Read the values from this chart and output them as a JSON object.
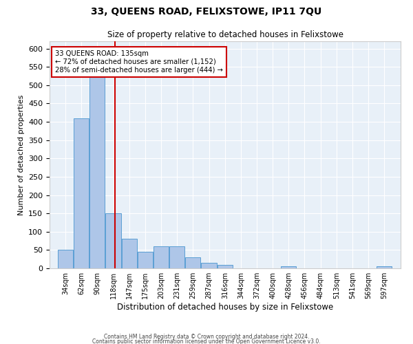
{
  "title": "33, QUEENS ROAD, FELIXSTOWE, IP11 7QU",
  "subtitle": "Size of property relative to detached houses in Felixstowe",
  "xlabel": "Distribution of detached houses by size in Felixstowe",
  "ylabel": "Number of detached properties",
  "bar_left_edges": [
    34,
    62,
    90,
    118,
    147,
    175,
    203,
    231,
    259,
    287,
    316,
    344,
    372,
    400,
    428,
    456,
    484,
    513,
    541,
    569,
    597
  ],
  "bar_widths": [
    28,
    28,
    28,
    29,
    28,
    28,
    28,
    28,
    28,
    29,
    28,
    28,
    28,
    28,
    28,
    28,
    29,
    28,
    28,
    28,
    28
  ],
  "bar_heights": [
    50,
    410,
    530,
    150,
    80,
    45,
    60,
    60,
    30,
    15,
    10,
    0,
    0,
    0,
    5,
    0,
    0,
    0,
    0,
    0,
    5
  ],
  "bar_color": "#aec6e8",
  "bar_edge_color": "#5a9fd4",
  "property_size": 135,
  "vline_color": "#cc0000",
  "annotation_text": "33 QUEENS ROAD: 135sqm\n← 72% of detached houses are smaller (1,152)\n28% of semi-detached houses are larger (444) →",
  "annotation_box_color": "#ffffff",
  "annotation_box_edge": "#cc0000",
  "ylim": [
    0,
    620
  ],
  "yticks": [
    0,
    50,
    100,
    150,
    200,
    250,
    300,
    350,
    400,
    450,
    500,
    550,
    600
  ],
  "xlim_left": 20,
  "xlim_right": 640,
  "background_color": "#e8f0f8",
  "grid_color": "#ffffff",
  "footer_line1": "Contains HM Land Registry data © Crown copyright and database right 2024.",
  "footer_line2": "Contains public sector information licensed under the Open Government Licence v3.0."
}
